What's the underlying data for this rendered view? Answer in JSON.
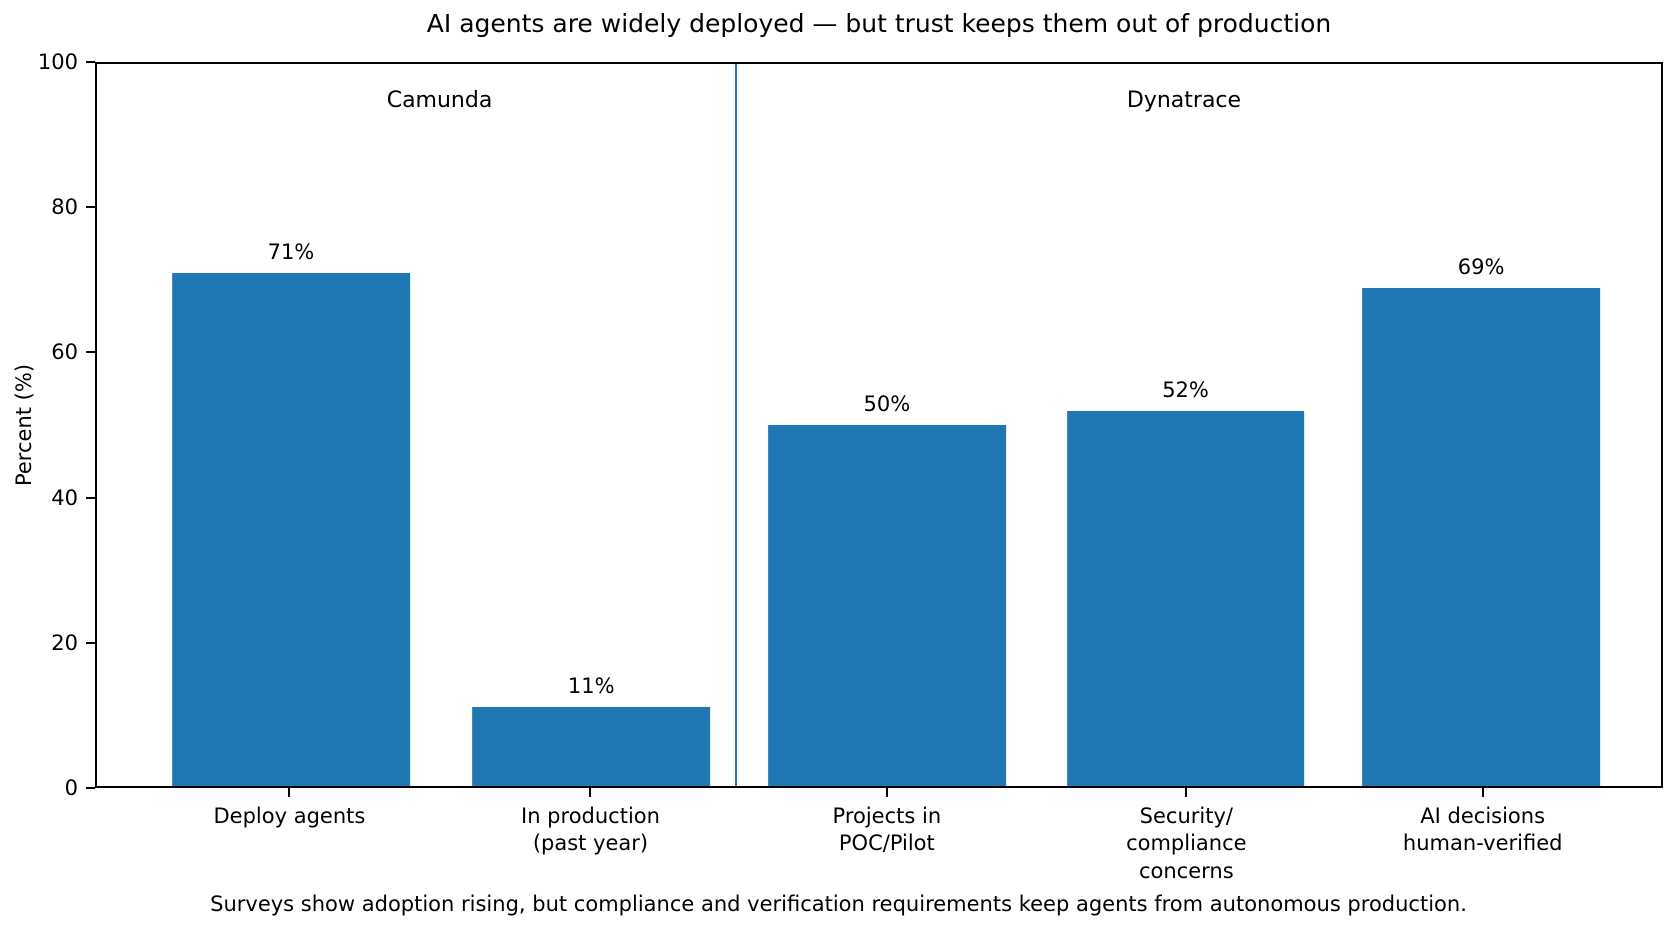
{
  "chart_data": {
    "type": "bar",
    "title": "AI agents are widely deployed — but trust keeps them out of production",
    "caption": "Surveys show adoption rising, but compliance and verification requirements keep agents from autonomous production.",
    "ylabel": "Percent (%)",
    "ylim": [
      0,
      100
    ],
    "grid": false,
    "legend": "none",
    "bar_color": "#1f77b4",
    "divider_color": "#1f77b4",
    "groups": [
      {
        "label": "Camunda",
        "categories": [
          "Deploy agents",
          "In production (past year)"
        ],
        "values": [
          71,
          11
        ]
      },
      {
        "label": "Dynatrace",
        "categories": [
          "Projects in POC/Pilot",
          "Security/compliance concerns",
          "AI decisions human-verified"
        ],
        "values": [
          50,
          52,
          69
        ]
      }
    ],
    "categories": [
      "Deploy agents",
      "In production (past year)",
      "Projects in POC/Pilot",
      "Security/compliance concerns",
      "AI decisions human-verified"
    ],
    "values": [
      71,
      11,
      50,
      52,
      69
    ],
    "bar_labels": [
      "71%",
      "11%",
      "50%",
      "52%",
      "69%"
    ],
    "xtick_labels": [
      "Deploy agents",
      "In production\n(past year)",
      "Projects in\nPOC/Pilot",
      "Security/\ncompliance\nconcerns",
      "AI decisions\nhuman-verified"
    ],
    "yticks": [
      0,
      20,
      40,
      60,
      80,
      100
    ],
    "ytick_labels": [
      "0",
      "20",
      "40",
      "60",
      "80",
      "100"
    ]
  }
}
